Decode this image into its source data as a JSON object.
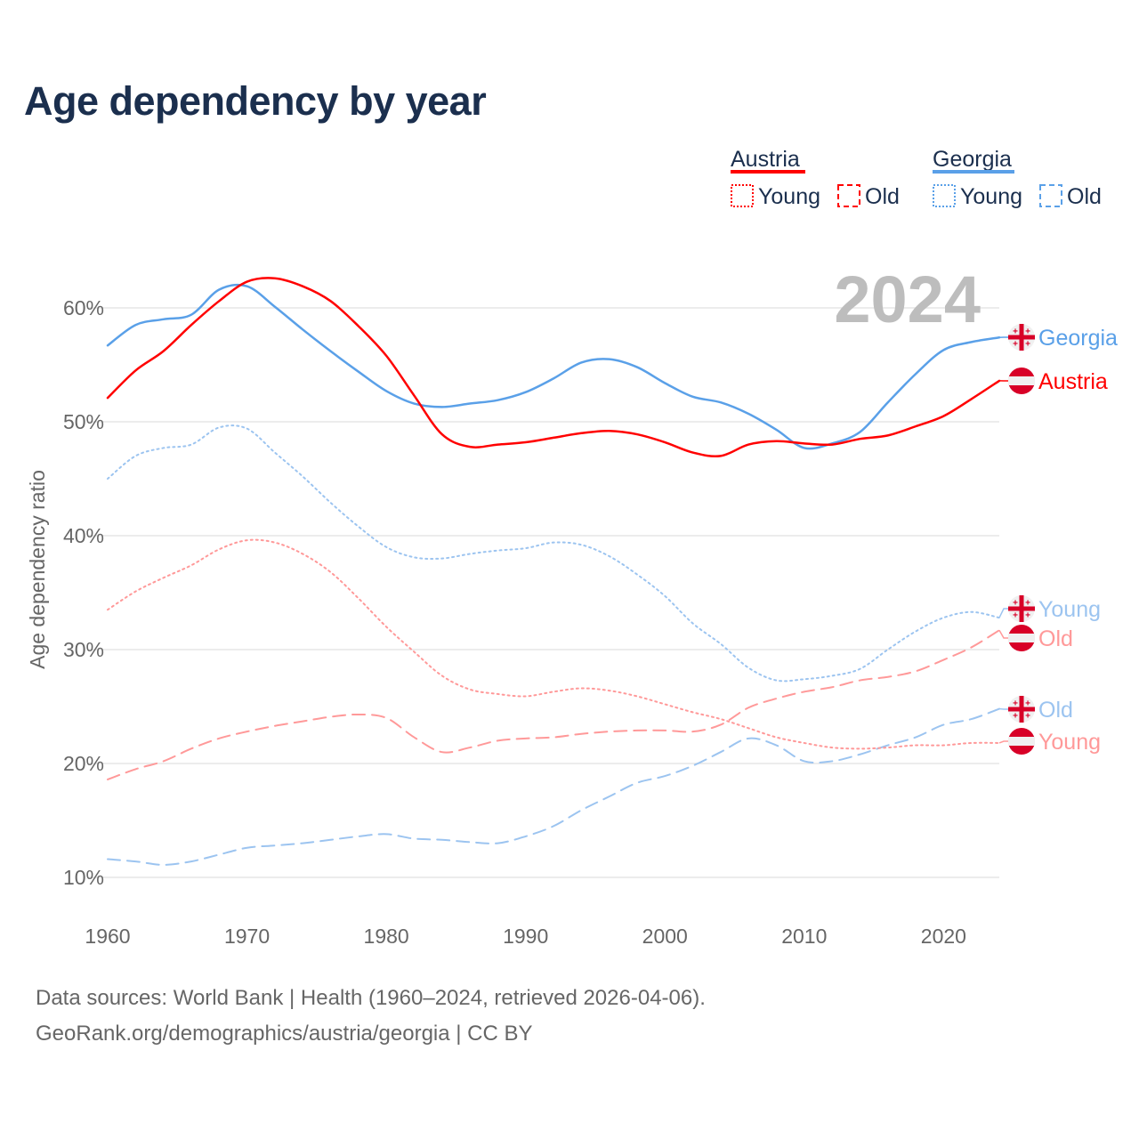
{
  "title": "Age dependency by year",
  "footer": {
    "line1": "Data sources: World Bank | Health (1960–2024, retrieved 2026-04-06).",
    "line2": "GeoRank.org/demographics/austria/georgia | CC BY"
  },
  "colors": {
    "austria": "#ff0000",
    "austria_light": "#ff9999",
    "georgia": "#5aa0e8",
    "georgia_light": "#9cc4f0",
    "text": "#1b2f4e",
    "year": "#bdbdbd"
  },
  "chart_data": {
    "type": "line",
    "title": "Age dependency by year",
    "xlabel": "",
    "ylabel": "Age dependency ratio",
    "xlim": [
      1960,
      2024
    ],
    "ylim": [
      9,
      63
    ],
    "x_ticks": [
      "1960",
      "1970",
      "1980",
      "1990",
      "2000",
      "2010",
      "2020"
    ],
    "y_ticks": [
      {
        "v": 10,
        "label": "10%"
      },
      {
        "v": 20,
        "label": "20%"
      },
      {
        "v": 30,
        "label": "30%"
      },
      {
        "v": 40,
        "label": "40%"
      },
      {
        "v": 50,
        "label": "50%"
      },
      {
        "v": 60,
        "label": "60%"
      }
    ],
    "grid": true,
    "year_watermark": "2024",
    "legend": {
      "placement": "top-right",
      "groups": [
        {
          "country": "Austria",
          "young": "Young",
          "old": "Old"
        },
        {
          "country": "Georgia",
          "young": "Young",
          "old": "Old"
        }
      ]
    },
    "x": [
      1960,
      1962,
      1964,
      1966,
      1968,
      1970,
      1972,
      1974,
      1976,
      1978,
      1980,
      1982,
      1984,
      1986,
      1988,
      1990,
      1992,
      1994,
      1996,
      1998,
      2000,
      2002,
      2004,
      2006,
      2008,
      2010,
      2012,
      2014,
      2016,
      2018,
      2020,
      2022,
      2024
    ],
    "series": [
      {
        "name": "Georgia",
        "country": "georgia",
        "kind": "total",
        "end_label": "Georgia",
        "values": [
          56.7,
          58.5,
          59.0,
          59.4,
          61.6,
          61.9,
          60.1,
          58.1,
          56.2,
          54.4,
          52.7,
          51.6,
          51.3,
          51.6,
          51.9,
          52.6,
          53.8,
          55.2,
          55.5,
          54.8,
          53.4,
          52.2,
          51.7,
          50.7,
          49.3,
          47.7,
          48.1,
          49.1,
          51.7,
          54.2,
          56.3,
          57.0,
          57.4
        ]
      },
      {
        "name": "Austria",
        "country": "austria",
        "kind": "total",
        "end_label": "Austria",
        "values": [
          52.1,
          54.5,
          56.2,
          58.5,
          60.6,
          62.3,
          62.6,
          61.9,
          60.6,
          58.4,
          55.8,
          52.3,
          48.9,
          47.8,
          48.0,
          48.2,
          48.6,
          49.0,
          49.2,
          48.9,
          48.2,
          47.3,
          47.0,
          48.0,
          48.3,
          48.1,
          48.0,
          48.5,
          48.8,
          49.6,
          50.5,
          52.0,
          53.6
        ]
      },
      {
        "name": "Georgia Young",
        "country": "georgia",
        "kind": "young",
        "end_label": "Young",
        "values": [
          45.0,
          47.0,
          47.7,
          48.0,
          49.5,
          49.4,
          47.3,
          45.2,
          42.9,
          40.8,
          39.0,
          38.1,
          38.0,
          38.4,
          38.7,
          38.9,
          39.4,
          39.2,
          38.2,
          36.6,
          34.7,
          32.3,
          30.5,
          28.4,
          27.3,
          27.4,
          27.7,
          28.3,
          30.0,
          31.6,
          32.8,
          33.3,
          32.8
        ]
      },
      {
        "name": "Austria Old",
        "country": "austria",
        "kind": "old",
        "end_label": "Old",
        "values": [
          18.6,
          19.5,
          20.2,
          21.3,
          22.2,
          22.8,
          23.3,
          23.7,
          24.1,
          24.3,
          24.0,
          22.3,
          21.0,
          21.4,
          22.0,
          22.2,
          22.3,
          22.6,
          22.8,
          22.9,
          22.9,
          22.8,
          23.4,
          24.9,
          25.7,
          26.3,
          26.7,
          27.3,
          27.6,
          28.1,
          29.1,
          30.2,
          31.7
        ]
      },
      {
        "name": "Georgia Old",
        "country": "georgia",
        "kind": "old",
        "end_label": "Old",
        "values": [
          11.6,
          11.4,
          11.1,
          11.4,
          12.0,
          12.6,
          12.8,
          13.0,
          13.3,
          13.6,
          13.8,
          13.4,
          13.3,
          13.1,
          13.0,
          13.6,
          14.5,
          15.9,
          17.1,
          18.3,
          18.9,
          19.8,
          21.0,
          22.2,
          21.6,
          20.2,
          20.2,
          20.8,
          21.6,
          22.3,
          23.4,
          23.9,
          24.8
        ]
      },
      {
        "name": "Austria Young",
        "country": "austria",
        "kind": "young",
        "end_label": "Young",
        "values": [
          33.5,
          35.1,
          36.3,
          37.4,
          38.8,
          39.6,
          39.4,
          38.4,
          36.8,
          34.5,
          32.0,
          29.8,
          27.7,
          26.5,
          26.1,
          25.9,
          26.3,
          26.6,
          26.4,
          25.9,
          25.2,
          24.5,
          23.9,
          23.1,
          22.3,
          21.8,
          21.4,
          21.3,
          21.4,
          21.6,
          21.6,
          21.8,
          21.8
        ]
      }
    ]
  }
}
